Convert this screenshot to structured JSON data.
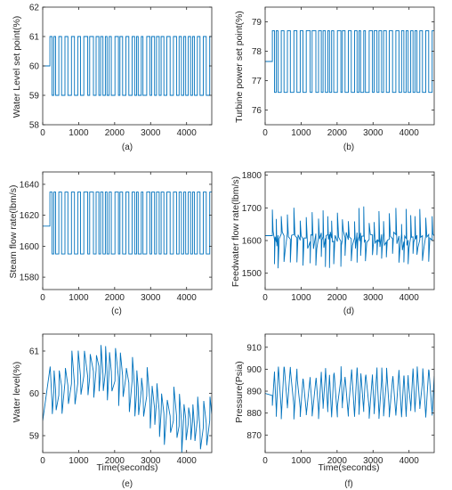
{
  "colors": {
    "line": "#0072BD",
    "axis": "#262626"
  },
  "chart_data": [
    {
      "id": "a",
      "type": "line",
      "caption": "(a)",
      "ylabel": "Water Level set point(%)",
      "xlabel": "",
      "xlim": [
        0,
        4700
      ],
      "ylim": [
        58,
        62
      ],
      "xticks": [
        0,
        1000,
        2000,
        3000,
        4000
      ],
      "yticks": [
        58,
        59,
        60,
        61,
        62
      ],
      "signal": "square",
      "low": 59,
      "high": 61,
      "initial": 60,
      "init_end": 200
    },
    {
      "id": "b",
      "type": "line",
      "caption": "(b)",
      "ylabel": "Turbine power set point(%)",
      "xlabel": "",
      "xlim": [
        0,
        4700
      ],
      "ylim": [
        75.5,
        79.5
      ],
      "xticks": [
        0,
        1000,
        2000,
        3000,
        4000
      ],
      "yticks": [
        76,
        77,
        78,
        79
      ],
      "signal": "square",
      "low": 76.6,
      "high": 78.7,
      "initial": 77.65,
      "init_end": 200
    },
    {
      "id": "c",
      "type": "line",
      "caption": "(c)",
      "ylabel": "Steam flow rate(lbm/s)",
      "xlabel": "",
      "xlim": [
        0,
        4700
      ],
      "ylim": [
        1572,
        1648
      ],
      "xticks": [
        0,
        1000,
        2000,
        3000,
        4000
      ],
      "yticks": [
        1580,
        1600,
        1620,
        1640
      ],
      "signal": "square",
      "low": 1595,
      "high": 1635,
      "initial": 1613,
      "init_end": 200
    },
    {
      "id": "d",
      "type": "line",
      "caption": "(d)",
      "ylabel": "Feedwater flow rate(lbm/s)",
      "xlabel": "",
      "xlim": [
        0,
        4700
      ],
      "ylim": [
        1450,
        1810
      ],
      "xticks": [
        0,
        1000,
        2000,
        3000,
        4000
      ],
      "yticks": [
        1500,
        1600,
        1700,
        1800
      ],
      "signal": "feedwater",
      "initial": 1615
    },
    {
      "id": "e",
      "type": "line",
      "caption": "(e)",
      "ylabel": "Water level(%)",
      "xlabel": "Time(seconds)",
      "xlim": [
        0,
        4700
      ],
      "ylim": [
        58.6,
        61.4
      ],
      "xticks": [
        0,
        1000,
        2000,
        3000,
        4000
      ],
      "yticks": [
        59,
        60,
        61
      ],
      "signal": "waterlevel",
      "initial": 59.35
    },
    {
      "id": "f",
      "type": "line",
      "caption": "(f)",
      "ylabel": "Pressure(Psia)",
      "xlabel": "Time(seconds)",
      "xlim": [
        0,
        4700
      ],
      "ylim": [
        862,
        916
      ],
      "xticks": [
        0,
        1000,
        2000,
        3000,
        4000
      ],
      "yticks": [
        870,
        880,
        890,
        900,
        910
      ],
      "signal": "pressure",
      "initial": 889
    }
  ]
}
